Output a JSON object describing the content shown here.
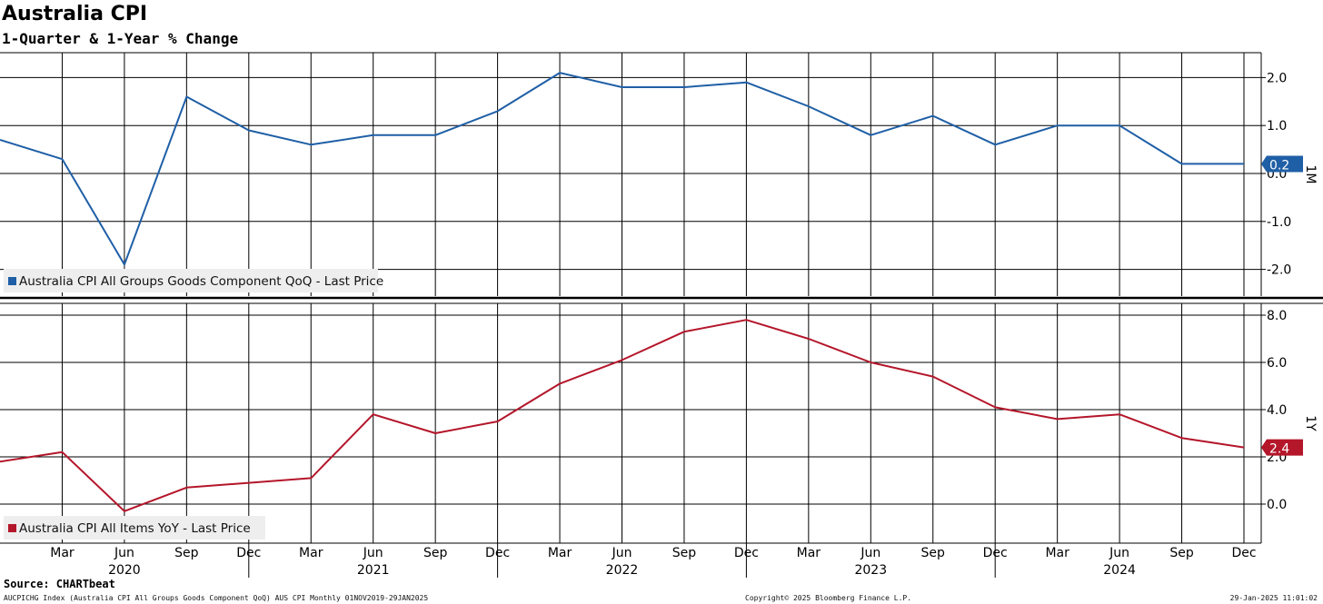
{
  "title": "Australia CPI",
  "subtitle": "1-Quarter & 1-Year % Change",
  "source": "Source: CHARTbeat",
  "footer": {
    "left": "AUCPICHG Index (Australia CPI All Groups Goods Component QoQ) AUS CPI  Monthly 01NOV2019-29JAN2025",
    "center": "Copyright© 2025 Bloomberg Finance L.P.",
    "right": "29-Jan-2025 11:01:02"
  },
  "chart_data": [
    {
      "type": "line",
      "panel_label": "1M",
      "legend": "Australia CPI All Groups Goods Component QoQ - Last Price",
      "legend_placement": "bottom-left",
      "color": "#1f5fa6",
      "last_value_label": "0.2",
      "ylim": [
        -2.6,
        2.5
      ],
      "yticks": [
        2.0,
        1.0,
        0.0,
        -1.0,
        -2.0
      ],
      "ytick_labels": [
        "2.0",
        "1.0",
        "0.0",
        "-1.0",
        "-2.0"
      ],
      "grid": true,
      "x": [
        "Dec 2019",
        "Mar 2020",
        "Jun 2020",
        "Sep 2020",
        "Dec 2020",
        "Mar 2021",
        "Jun 2021",
        "Sep 2021",
        "Dec 2021",
        "Mar 2022",
        "Jun 2022",
        "Sep 2022",
        "Dec 2022",
        "Mar 2023",
        "Jun 2023",
        "Sep 2023",
        "Dec 2023",
        "Mar 2024",
        "Jun 2024",
        "Sep 2024",
        "Dec 2024"
      ],
      "values": [
        0.7,
        0.3,
        -1.9,
        1.6,
        0.9,
        0.6,
        0.8,
        0.8,
        1.3,
        2.1,
        1.8,
        1.8,
        1.9,
        1.4,
        0.8,
        1.2,
        0.6,
        1.0,
        1.0,
        0.2,
        0.2
      ]
    },
    {
      "type": "line",
      "panel_label": "1Y",
      "legend": "Australia CPI All Items YoY - Last Price",
      "legend_placement": "bottom-left",
      "color": "#b4162a",
      "last_value_label": "2.4",
      "ylim": [
        -1.7,
        8.8
      ],
      "yticks": [
        8.0,
        6.0,
        4.0,
        2.0,
        0.0
      ],
      "ytick_labels": [
        "8.0",
        "6.0",
        "4.0",
        "2.0",
        "0.0"
      ],
      "grid": true,
      "x": [
        "Dec 2019",
        "Mar 2020",
        "Jun 2020",
        "Sep 2020",
        "Dec 2020",
        "Mar 2021",
        "Jun 2021",
        "Sep 2021",
        "Dec 2021",
        "Mar 2022",
        "Jun 2022",
        "Sep 2022",
        "Dec 2022",
        "Mar 2023",
        "Jun 2023",
        "Sep 2023",
        "Dec 2023",
        "Mar 2024",
        "Jun 2024",
        "Sep 2024",
        "Dec 2024"
      ],
      "values": [
        1.8,
        2.2,
        -0.3,
        0.7,
        0.9,
        1.1,
        3.8,
        3.0,
        3.5,
        5.1,
        6.1,
        7.3,
        7.8,
        7.0,
        6.0,
        5.4,
        4.1,
        3.6,
        3.8,
        2.8,
        2.4
      ]
    }
  ],
  "x_axis": {
    "month_labels": [
      "Mar",
      "Jun",
      "Sep",
      "Dec",
      "Mar",
      "Jun",
      "Sep",
      "Dec",
      "Mar",
      "Jun",
      "Sep",
      "Dec",
      "Mar",
      "Jun",
      "Sep",
      "Dec",
      "Mar",
      "Jun",
      "Sep",
      "Dec"
    ],
    "years": [
      "2020",
      "2021",
      "2022",
      "2023",
      "2024"
    ]
  }
}
